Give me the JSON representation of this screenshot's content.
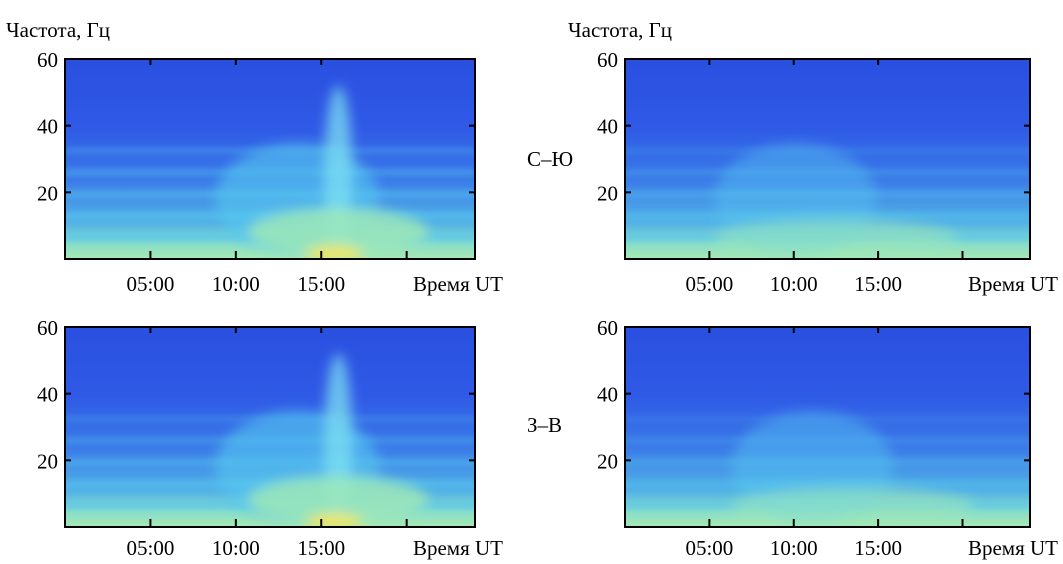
{
  "colors": {
    "background_top": "#2f57e6",
    "band_light": "#55c8f0",
    "low_freq": "#9ee8b8",
    "hotspot": "#f5e65a",
    "frame": "#000000"
  },
  "row_labels": [
    "С–Ю",
    "З–В"
  ],
  "chart_data": [
    {
      "type": "heatmap",
      "ylabel": "Частота, Гц",
      "xlabel": "Время UT",
      "x_ticks": [
        "05:00",
        "10:00",
        "15:00"
      ],
      "y_ticks": [
        "60",
        "40",
        "20"
      ],
      "ylim": [
        0,
        60
      ],
      "peak_time": "16:00",
      "peak_strength": 1.0,
      "band_strength": 0.55
    },
    {
      "type": "heatmap",
      "ylabel": "Частота, Гц",
      "xlabel": "Время UT",
      "x_ticks": [
        "05:00",
        "10:00",
        "15:00"
      ],
      "y_ticks": [
        "60",
        "40",
        "20"
      ],
      "ylim": [
        0,
        60
      ],
      "peak_time": "12:30",
      "peak_strength": 0.25,
      "band_strength": 0.45
    },
    {
      "type": "heatmap",
      "xlabel": "Время UT",
      "x_ticks": [
        "05:00",
        "10:00",
        "15:00"
      ],
      "y_ticks": [
        "60",
        "40",
        "20"
      ],
      "ylim": [
        0,
        60
      ],
      "peak_time": "16:00",
      "peak_strength": 1.0,
      "band_strength": 0.5
    },
    {
      "type": "heatmap",
      "xlabel": "Время UT",
      "x_ticks": [
        "05:00",
        "10:00",
        "15:00"
      ],
      "y_ticks": [
        "60",
        "40",
        "20"
      ],
      "ylim": [
        0,
        60
      ],
      "peak_time": "13:30",
      "peak_strength": 0.3,
      "band_strength": 0.4
    }
  ]
}
